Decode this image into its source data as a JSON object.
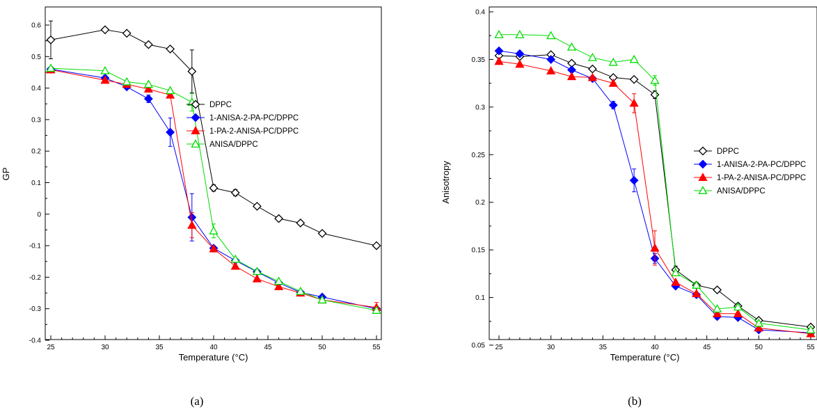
{
  "chart_data": [
    {
      "type": "line",
      "panel_label": "(a)",
      "xlabel": "Temperature (°C)",
      "ylabel": "GP",
      "xlim": [
        25,
        55
      ],
      "ylim": [
        -0.4,
        0.6
      ],
      "xticks": [
        25,
        30,
        35,
        40,
        45,
        50,
        55
      ],
      "yticks": [
        -0.4,
        -0.3,
        -0.2,
        -0.1,
        0,
        0.1,
        0.2,
        0.3,
        0.4,
        0.5,
        0.6
      ],
      "ytick_labels": [
        "-0.4",
        "-0.3",
        "-0.2",
        "-0.1",
        "0",
        "0.1",
        "0.2",
        "0.3",
        "0.4",
        "0.5",
        "0.6"
      ],
      "xtick_labels": [
        "25",
        "30",
        "35",
        "40",
        "45",
        "50",
        "55"
      ],
      "legend_position": "right",
      "series": [
        {
          "name": "DPPC",
          "color": "#000000",
          "marker": "diamond-open",
          "x": [
            25,
            30,
            32,
            34,
            36,
            38,
            40,
            42,
            44,
            46,
            48,
            50,
            55
          ],
          "y": [
            0.553,
            0.585,
            0.574,
            0.538,
            0.524,
            0.453,
            0.083,
            0.068,
            0.025,
            -0.014,
            -0.028,
            -0.061,
            -0.1
          ],
          "err": [
            0.06,
            0,
            0,
            0,
            0,
            0.068,
            0.01,
            0.01,
            0,
            0,
            0,
            0,
            0
          ]
        },
        {
          "name": "1-ANISA-2-PA-PC/DPPC",
          "color": "#0000ff",
          "marker": "diamond-filled",
          "x": [
            25,
            30,
            32,
            34,
            36,
            38,
            40,
            42,
            44,
            46,
            48,
            50,
            55
          ],
          "y": [
            0.46,
            0.432,
            0.404,
            0.366,
            0.26,
            -0.01,
            -0.108,
            -0.147,
            -0.183,
            -0.218,
            -0.248,
            -0.263,
            -0.3
          ],
          "err": [
            0,
            0,
            0,
            0.012,
            0.045,
            0.075,
            0,
            0,
            0,
            0,
            0,
            0,
            0
          ]
        },
        {
          "name": "1-PA-2-ANISA-PC/DPPC",
          "color": "#ff0000",
          "marker": "triangle-filled",
          "x": [
            25,
            30,
            32,
            34,
            36,
            38,
            40,
            42,
            44,
            46,
            48,
            50,
            55
          ],
          "y": [
            0.458,
            0.425,
            0.412,
            0.397,
            0.378,
            -0.035,
            -0.11,
            -0.165,
            -0.205,
            -0.23,
            -0.25,
            -0.272,
            -0.296
          ],
          "err": [
            0,
            0,
            0,
            0,
            0,
            0.04,
            0,
            0,
            0,
            0,
            0,
            0,
            0.016
          ]
        },
        {
          "name": "ANISA/DPPC",
          "color": "#00dd00",
          "marker": "triangle-open",
          "x": [
            25,
            30,
            32,
            34,
            36,
            38,
            40,
            42,
            44,
            46,
            48,
            50,
            55
          ],
          "y": [
            0.463,
            0.455,
            0.42,
            0.412,
            0.392,
            0.355,
            -0.053,
            -0.143,
            -0.182,
            -0.213,
            -0.245,
            -0.272,
            -0.305
          ],
          "err": [
            0,
            0,
            0,
            0,
            0,
            0.028,
            0.022,
            0,
            0,
            0,
            0,
            0,
            0
          ]
        }
      ]
    },
    {
      "type": "line",
      "panel_label": "(b)",
      "xlabel": "Temperature (°C)",
      "ylabel": "Anisotropy",
      "xlim": [
        25,
        55
      ],
      "ylim": [
        0.05,
        0.4
      ],
      "xticks": [
        25,
        30,
        35,
        40,
        45,
        50,
        55
      ],
      "yticks": [
        0.05,
        0.1,
        0.15,
        0.2,
        0.25,
        0.3,
        0.35,
        0.4
      ],
      "ytick_labels": [
        "0.05",
        "0.1",
        "0.15",
        "0.2",
        "0.25",
        "0.3",
        "0.35",
        "0.4"
      ],
      "xtick_labels": [
        "25",
        "30",
        "35",
        "40",
        "45",
        "50",
        "55"
      ],
      "legend_position": "right",
      "series": [
        {
          "name": "DPPC",
          "color": "#000000",
          "marker": "diamond-open",
          "x": [
            25,
            27,
            30,
            32,
            34,
            36,
            38,
            40,
            42,
            44,
            46,
            48,
            50,
            55
          ],
          "y": [
            0.354,
            0.353,
            0.355,
            0.346,
            0.34,
            0.331,
            0.329,
            0.313,
            0.129,
            0.113,
            0.108,
            0.091,
            0.076,
            0.069
          ],
          "err": [
            0,
            0,
            0,
            0,
            0,
            0,
            0,
            0.004,
            0.004,
            0,
            0,
            0,
            0,
            0
          ]
        },
        {
          "name": "1-ANISA-2-PA-PC/DPPC",
          "color": "#0000ff",
          "marker": "diamond-filled",
          "x": [
            25,
            27,
            30,
            32,
            34,
            36,
            38,
            40,
            42,
            44,
            46,
            48,
            50,
            55
          ],
          "y": [
            0.359,
            0.356,
            0.35,
            0.339,
            0.33,
            0.302,
            0.223,
            0.141,
            0.112,
            0.103,
            0.08,
            0.079,
            0.066,
            0.063
          ],
          "err": [
            0,
            0,
            0,
            0,
            0,
            0.004,
            0.012,
            0.005,
            0,
            0,
            0,
            0,
            0,
            0
          ]
        },
        {
          "name": "1-PA-2-ANISA-PC/DPPC",
          "color": "#ff0000",
          "marker": "triangle-filled",
          "x": [
            25,
            27,
            30,
            32,
            34,
            36,
            38,
            40,
            42,
            44,
            46,
            48,
            50,
            55
          ],
          "y": [
            0.348,
            0.345,
            0.338,
            0.332,
            0.331,
            0.325,
            0.304,
            0.152,
            0.116,
            0.104,
            0.083,
            0.083,
            0.068,
            0.062
          ],
          "err": [
            0,
            0,
            0,
            0,
            0,
            0,
            0.01,
            0.018,
            0,
            0,
            0,
            0,
            0,
            0
          ]
        },
        {
          "name": "ANISA/DPPC",
          "color": "#00dd00",
          "marker": "triangle-open",
          "x": [
            25,
            27,
            30,
            32,
            34,
            36,
            38,
            40,
            42,
            44,
            46,
            48,
            50,
            55
          ],
          "y": [
            0.376,
            0.376,
            0.375,
            0.363,
            0.352,
            0.347,
            0.35,
            0.328,
            0.126,
            0.113,
            0.088,
            0.09,
            0.073,
            0.066
          ],
          "err": [
            0,
            0,
            0,
            0,
            0,
            0,
            0,
            0.005,
            0,
            0,
            0,
            0,
            0,
            0
          ]
        }
      ]
    }
  ]
}
